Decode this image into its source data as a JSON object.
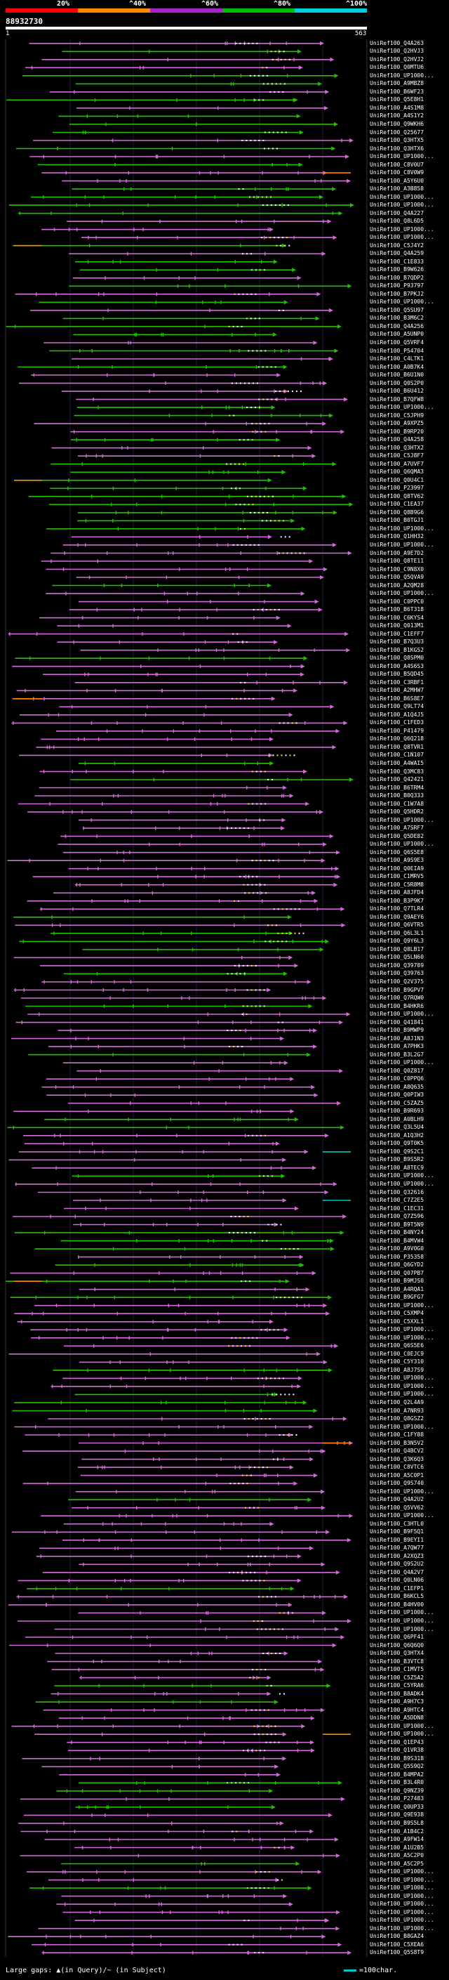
{
  "legend": {
    "identity_scale": [
      {
        "label": "20%",
        "color": "#ff0000"
      },
      {
        "label": "^40%",
        "color": "#ff8800"
      },
      {
        "label": "^60%",
        "color": "#aa22cc"
      },
      {
        "label": "^80%",
        "color": "#00bb00"
      },
      {
        "label": "^100%",
        "color": "#00ccdd"
      }
    ]
  },
  "query": {
    "id": "88932730",
    "start": "1",
    "end": "563"
  },
  "colors": {
    "magenta": "#d26ad8",
    "green": "#22c000",
    "orange": "#ff8a00",
    "yellow": "#f0f020",
    "gold": "#c8a000",
    "cyan": "#00c8c8"
  },
  "hits": [
    "UniRef100_Q4A263",
    "UniRef100_Q2HVJ3",
    "UniRef100_Q2HVJ2",
    "UniRef100_Q0MTU6",
    "UniRef100_UP1000...",
    "UniRef100_A9MBZ8",
    "UniRef100_B6WF23",
    "UniRef100_Q5E8H1",
    "UniRef100_A4S1M8",
    "UniRef100_A4S1Y2",
    "UniRef100_Q9WKH6",
    "UniRef100_Q25677",
    "UniRef100_Q3HTX5",
    "UniRef100_Q3HTX6",
    "UniRef100_UP1000...",
    "UniRef100_C8V0U7",
    "UniRef100_C8V0W9",
    "UniRef100_A5Y6U0",
    "UniRef100_A3B858",
    "UniRef100_UP1000...",
    "UniRef100_UP1000...",
    "UniRef100_Q4A227",
    "UniRef100_Q8L6D5",
    "UniRef100_UP1000...",
    "UniRef100_UP1000...",
    "UniRef100_C5J4Y2",
    "UniRef100_Q4A259",
    "UniRef100_C1E833",
    "UniRef100_B9W626",
    "UniRef100_B7QDP2",
    "UniRef100_P93797",
    "UniRef100_B7PKJ2",
    "UniRef100_UP1000...",
    "UniRef100_Q5SU97",
    "UniRef100_B3M6C2",
    "UniRef100_Q4A256",
    "UniRef100_A5UNP0",
    "UniRef100_Q5VRF4",
    "UniRef100_P54704",
    "UniRef100_C4LTK1",
    "UniRef100_A0B7K4",
    "UniRef100_B6U1N0",
    "UniRef100_Q0S2P0",
    "UniRef100_B6U412",
    "UniRef100_B7QFW8",
    "UniRef100_UP1000...",
    "UniRef100_C5JPH9",
    "UniRef100_A9XPZ5",
    "UniRef100_B9RP20",
    "UniRef100_Q4A258",
    "UniRef100_Q3HTX2",
    "UniRef100_C5J8F7",
    "UniRef100_A7UVF7",
    "UniRef100_Q6QMA3",
    "UniRef100_Q0U4C1",
    "UniRef100_P23997",
    "UniRef100_Q8TV62",
    "UniRef100_C1EA37",
    "UniRef100_Q8B9G6",
    "UniRef100_B0TGJ1",
    "UniRef100_UP1000...",
    "UniRef100_Q1HH32",
    "UniRef100_UP1000...",
    "UniRef100_A9E7D2",
    "UniRef100_Q8TE11",
    "UniRef100_C9N8X0",
    "UniRef100_Q5QVA9",
    "UniRef100_A2QM28",
    "UniRef100_UP1000...",
    "UniRef100_C0PPC0",
    "UniRef100_B6T318",
    "UniRef100_C6KYS4",
    "UniRef100_Q013M1",
    "UniRef100_C1EFF7",
    "UniRef100_B7Q3U3",
    "UniRef100_B1KGS2",
    "UniRef100_Q8SPM0",
    "UniRef100_A4S6S3",
    "UniRef100_B5QD45",
    "UniRef100_C3RBF1",
    "UniRef100_A2MHW7",
    "UniRef100_B6S8E7",
    "UniRef100_Q9LT74",
    "UniRef100_A1Q4J5",
    "UniRef100_C1FED3",
    "UniRef100_P41479",
    "UniRef100_Q6Q218",
    "UniRef100_Q8TVR1",
    "UniRef100_C1N107",
    "UniRef100_A4WAI5",
    "UniRef100_Q3MC83",
    "UniRef100_Q42421",
    "UniRef100_B6TRM4",
    "UniRef100_B0Q333",
    "UniRef100_C1W7A8",
    "UniRef100_Q5HDR2",
    "UniRef100_UP1000...",
    "UniRef100_A7SRF7",
    "UniRef100_Q5DE82",
    "UniRef100_UP1000...",
    "UniRef100_Q6S5E8",
    "UniRef100_A9S9E3",
    "UniRef100_Q0EIA9",
    "UniRef100_C1MRV5",
    "UniRef100_C5R8M8",
    "UniRef100_A8JFD4",
    "UniRef100_B3P9K7",
    "UniRef100_Q7TLR4",
    "UniRef100_Q9AEY6",
    "UniRef100_Q6VTR5",
    "UniRef100_Q6L3L1",
    "UniRef100_Q9Y6L3",
    "UniRef100_Q8LB17",
    "UniRef100_Q5LN60",
    "UniRef100_Q39789",
    "UniRef100_Q39763",
    "UniRef100_Q2V375",
    "UniRef100_B9GPV7",
    "UniRef100_Q7RQW0",
    "UniRef100_B4HKR6",
    "UniRef100_UP1000...",
    "UniRef100_Q41841",
    "UniRef100_B9MWP9",
    "UniRef100_A8J1N3",
    "UniRef100_A7PHK3",
    "UniRef100_B3L2G7",
    "UniRef100_UP1000...",
    "UniRef100_Q0Z817",
    "UniRef100_C0PPQ6",
    "UniRef100_A8Q635",
    "UniRef100_Q0PIW3",
    "UniRef100_C5ZAZ5",
    "UniRef100_B9R693",
    "UniRef100_A0BLH9",
    "UniRef100_Q3L5U4",
    "UniRef100_A1Q3H2",
    "UniRef100_Q9T0K5",
    "UniRef100_Q9S2C1",
    "UniRef100_B9S5R2",
    "UniRef100_A8TEC9",
    "UniRef100_UP1000...",
    "UniRef100_UP1000...",
    "UniRef100_Q32616",
    "UniRef100_C7Z2E5",
    "UniRef100_C1EC31",
    "UniRef100_Q7Z596",
    "UniRef100_B9T5N9",
    "UniRef100_B4NY24",
    "UniRef100_B4MVW4",
    "UniRef100_A9V0G0",
    "UniRef100_P35358",
    "UniRef100_Q6GYD2",
    "UniRef100_Q07PB7",
    "UniRef100_B9MJS0",
    "UniRef100_A4RQA1",
    "UniRef100_B9GFG7",
    "UniRef100_UP1000...",
    "UniRef100_C5XMP4",
    "UniRef100_C5XXL1",
    "UniRef100_UP1000...",
    "UniRef100_UP1000...",
    "UniRef100_Q6S5E6",
    "UniRef100_C0EJC9",
    "UniRef100_C5Y310",
    "UniRef100_A8J7S9",
    "UniRef100_UP1000...",
    "UniRef100_UP1000...",
    "UniRef100_UP1000...",
    "UniRef100_Q2L4A9",
    "UniRef100_A7NR93",
    "UniRef100_Q8GSZ2",
    "UniRef100_UP1000...",
    "UniRef100_C1FY88",
    "UniRef100_B3N5V2",
    "UniRef100_Q4BCV2",
    "UniRef100_Q3K6Q3",
    "UniRef100_C8VTC6",
    "UniRef100_A5C0P1",
    "UniRef100_Q9S740",
    "UniRef100_UP1000...",
    "UniRef100_Q4A2U2",
    "UniRef100_Q5VV62",
    "UniRef100_UP1000...",
    "UniRef100_C3HTL0",
    "UniRef100_B9F5Q1",
    "UniRef100_B9EYI1",
    "UniRef100_A7QW77",
    "UniRef100_A2XQZ3",
    "UniRef100_Q9S2U2",
    "UniRef100_Q4A2V7",
    "UniRef100_Q0LN06",
    "UniRef100_C1EFP1",
    "UniRef100_B6KCL5",
    "UniRef100_B4HV00",
    "UniRef100_UP1000...",
    "UniRef100_UP1000...",
    "UniRef100_UP1000...",
    "UniRef100_Q6PF41",
    "UniRef100_Q6Q6Q0",
    "UniRef100_Q3HTX4",
    "UniRef100_B3VTC8",
    "UniRef100_C1MVT5",
    "UniRef100_C5Z5A2",
    "UniRef100_C5YRA6",
    "UniRef100_B8ADK4",
    "UniRef100_A9H7C3",
    "UniRef100_A9HTC4",
    "UniRef100_A5DDN8",
    "UniRef100_UP1000...",
    "UniRef100_UP1000...",
    "UniRef100_Q1EP43",
    "UniRef100_Q1VR38",
    "UniRef100_B9S318",
    "UniRef100_Q5S9Q2",
    "UniRef100_B4MPA2",
    "UniRef100_B3L4R0",
    "UniRef100_Q9NZ39",
    "UniRef100_P27483",
    "UniRef100_Q0UP33",
    "UniRef100_Q9E938",
    "UniRef100_B9S5L8",
    "UniRef100_A1B4C2",
    "UniRef100_A9FW14",
    "UniRef100_A1U2B5",
    "UniRef100_A5C2P0",
    "UniRef100_A5C2P5",
    "UniRef100_UP1000...",
    "UniRef100_UP1000...",
    "UniRef100_UP1000...",
    "UniRef100_UP1000...",
    "UniRef100_UP1000...",
    "UniRef100_UP1000...",
    "UniRef100_UP1000...",
    "UniRef100_UP1000...",
    "UniRef100_B8GAZ4",
    "UniRef100_C5XEA6",
    "UniRef100_Q5S8T9"
  ],
  "footer": {
    "left": "Large gaps: ▲(in Query)/~ (in Subject)",
    "right": "=100char."
  }
}
